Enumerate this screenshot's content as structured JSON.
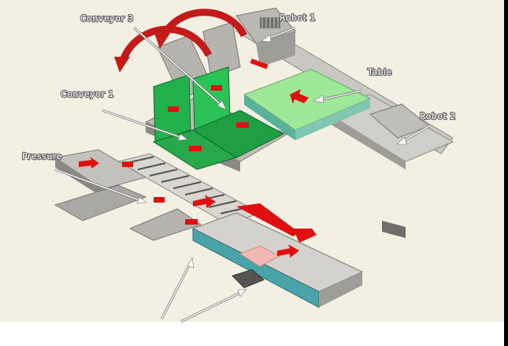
{
  "callouts": {
    "robot_1": "Robot 1",
    "robot_2": "Robot 2",
    "conveyor_3": "Conveyor 3",
    "conveyor_1": "Conveyor 1",
    "table": "Table",
    "pressure": "Pressure"
  },
  "colors": {
    "background": "#ffffff",
    "floor": "#f3efe3",
    "frame_grey": "#bdbcb6",
    "frame_dark": "#8a8985",
    "platform_green": "#9ee89a",
    "panel_green": "#22b14c",
    "belt_teal": "#4aa3a8",
    "motion_red": "#e01010"
  }
}
